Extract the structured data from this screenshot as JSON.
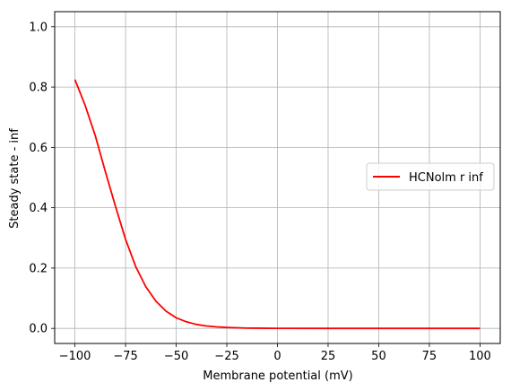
{
  "chart_data": {
    "type": "line",
    "xlabel": "Membrane potential (mV)",
    "ylabel": "Steady state - inf",
    "xlim": [
      -110,
      110
    ],
    "ylim": [
      -0.05,
      1.05
    ],
    "xticks": [
      -100,
      -75,
      -50,
      -25,
      0,
      25,
      50,
      75,
      100
    ],
    "xtick_labels": [
      "−100",
      "−75",
      "−50",
      "−25",
      "0",
      "25",
      "50",
      "75",
      "100"
    ],
    "yticks": [
      0.0,
      0.2,
      0.4,
      0.6,
      0.8,
      1.0
    ],
    "ytick_labels": [
      "0.0",
      "0.2",
      "0.4",
      "0.6",
      "0.8",
      "1.0"
    ],
    "grid": true,
    "legend_position": "center-right",
    "series": [
      {
        "name": "HCNolm r inf",
        "color": "#ff0000",
        "x": [
          -100,
          -95,
          -90,
          -85,
          -80,
          -75,
          -70,
          -65,
          -60,
          -55,
          -50,
          -45,
          -40,
          -35,
          -30,
          -25,
          -20,
          -15,
          -10,
          -5,
          0,
          25,
          50,
          75,
          100
        ],
        "y": [
          0.825,
          0.74,
          0.64,
          0.52,
          0.405,
          0.295,
          0.205,
          0.138,
          0.09,
          0.057,
          0.035,
          0.022,
          0.013,
          0.008,
          0.005,
          0.003,
          0.002,
          0.001,
          0.0007,
          0.0004,
          0.0002,
          0.0,
          0.0,
          0.0,
          0.0
        ]
      }
    ]
  }
}
